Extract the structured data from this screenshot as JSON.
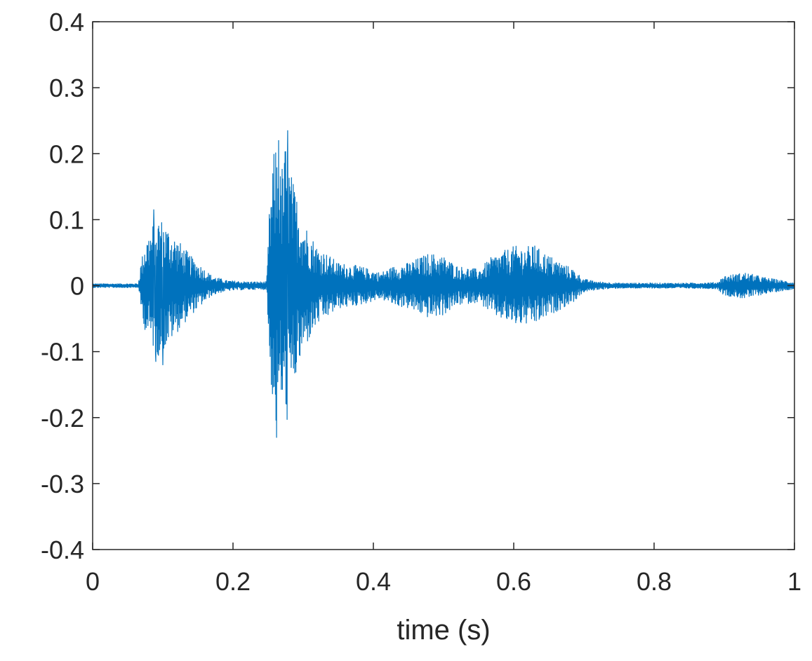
{
  "chart_data": {
    "type": "line",
    "title": "",
    "xlabel": "time (s)",
    "ylabel": "",
    "xlim": [
      0,
      1
    ],
    "ylim": [
      -0.4,
      0.4
    ],
    "x_ticks": [
      0,
      0.2,
      0.4,
      0.6,
      0.8,
      1
    ],
    "x_tick_labels": [
      "0",
      "0.2",
      "0.4",
      "0.6",
      "0.8",
      "1"
    ],
    "y_ticks": [
      0.4,
      0.3,
      0.2,
      0.1,
      0,
      -0.1,
      -0.2,
      -0.3,
      -0.4
    ],
    "y_tick_labels": [
      "0.4",
      "0.3",
      "0.2",
      "0.1",
      "0",
      "-0.1",
      "-0.2",
      "-0.3",
      "-0.4"
    ],
    "grid": false,
    "legend": "none",
    "series": [
      {
        "color": "#0072BD",
        "envelope": {
          "x": [
            0,
            0.065,
            0.068,
            0.075,
            0.085,
            0.09,
            0.1,
            0.11,
            0.125,
            0.14,
            0.155,
            0.17,
            0.19,
            0.22,
            0.248,
            0.252,
            0.258,
            0.262,
            0.268,
            0.275,
            0.285,
            0.3,
            0.32,
            0.35,
            0.38,
            0.41,
            0.43,
            0.45,
            0.48,
            0.5,
            0.52,
            0.55,
            0.57,
            0.6,
            0.63,
            0.66,
            0.685,
            0.7,
            0.72,
            0.75,
            0.8,
            0.85,
            0.89,
            0.9,
            0.93,
            0.96,
            1
          ],
          "amplitude": [
            0.003,
            0.003,
            0.03,
            0.07,
            0.09,
            0.11,
            0.1,
            0.085,
            0.065,
            0.045,
            0.03,
            0.015,
            0.008,
            0.006,
            0.006,
            0.12,
            0.2,
            0.22,
            0.17,
            0.22,
            0.16,
            0.1,
            0.06,
            0.035,
            0.03,
            0.02,
            0.03,
            0.035,
            0.05,
            0.045,
            0.03,
            0.025,
            0.045,
            0.06,
            0.06,
            0.04,
            0.025,
            0.01,
            0.006,
            0.004,
            0.004,
            0.004,
            0.005,
            0.015,
            0.02,
            0.012,
            0.005
          ]
        },
        "peaks": {
          "x": [
            0.087,
            0.1,
            0.262,
            0.278,
            0.265,
            0.09,
            0.63
          ],
          "y": [
            0.115,
            -0.12,
            -0.23,
            0.235,
            0.22,
            -0.115,
            0.06
          ]
        }
      }
    ]
  }
}
